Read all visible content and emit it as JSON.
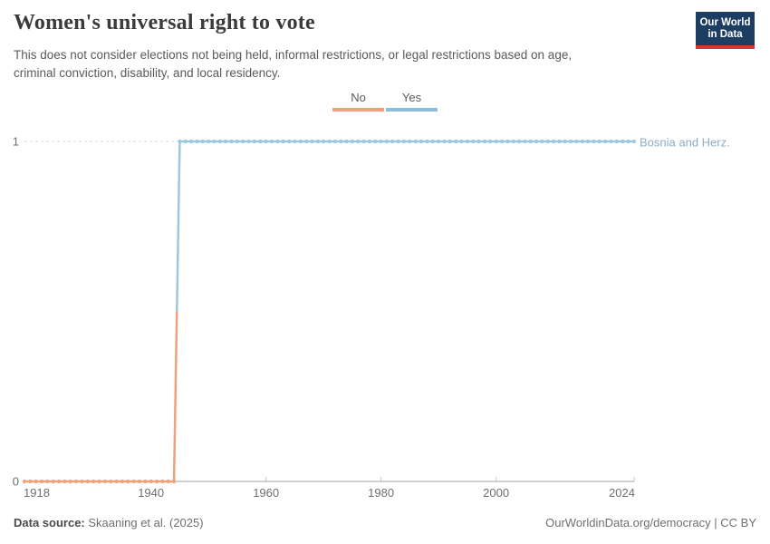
{
  "header": {
    "title": "Women's universal right to vote",
    "subtitle_lines": [
      "This does not consider elections not being held, informal restrictions, or legal restrictions based on age,",
      "criminal conviction, disability, and local residency."
    ]
  },
  "logo": {
    "line1": "Our World",
    "line2": "in Data",
    "bg_color": "#1d3d63",
    "bar_color": "#d8352e"
  },
  "legend": {
    "items": [
      {
        "label": "No",
        "color": "#f0a17c"
      },
      {
        "label": "Yes",
        "color": "#8bbedc"
      }
    ]
  },
  "chart_data": {
    "type": "line",
    "subtype": "step",
    "title": "Women's universal right to vote",
    "xlabel": "",
    "ylabel": "",
    "x": {
      "min": 1918,
      "max": 2024,
      "tick_labels": [
        1918,
        1940,
        1960,
        1980,
        2000,
        2024
      ],
      "tick_marks": [
        1960,
        1980,
        2000,
        2024
      ]
    },
    "y": {
      "min": 0,
      "max": 1,
      "tick_labels": [
        0,
        1
      ],
      "gridlines": [
        1
      ]
    },
    "marker": "circle-per-year",
    "series": [
      {
        "name": "Bosnia and Herz.",
        "label_color": "#8baec6",
        "segments": [
          {
            "legend": "No",
            "value": 0,
            "from_year": 1918,
            "to_year": 1944,
            "color": "#f0a17c"
          },
          {
            "legend": "Yes",
            "value": 1,
            "from_year": 1945,
            "to_year": 2024,
            "color": "#9cc7e1"
          }
        ]
      }
    ],
    "colors": {
      "axis": "#a3a3a3",
      "tick": "#c9c9c9",
      "tick_label": "#6e6e6e",
      "gridline": "#d9d9d9"
    }
  },
  "footer": {
    "source_label": "Data source:",
    "source_value": "Skaaning et al. (2025)",
    "right_text": "OurWorldinData.org/democracy | CC BY"
  }
}
